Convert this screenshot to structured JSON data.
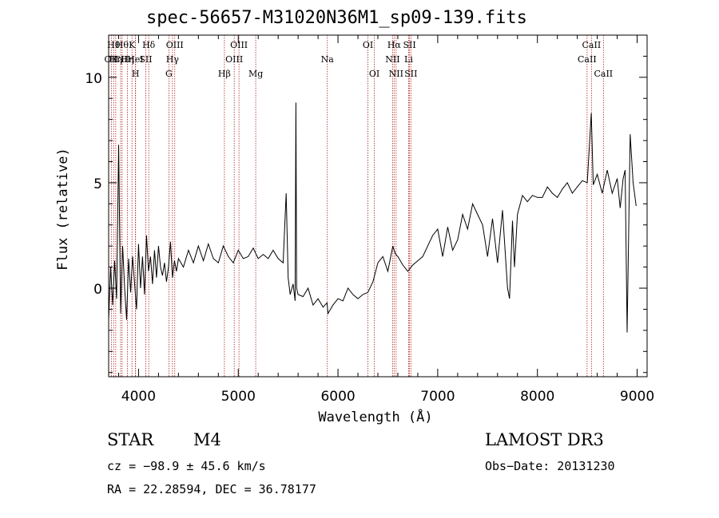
{
  "chart_data": {
    "type": "line",
    "title": "spec-56657-M31020N36M1_sp09-139.fits",
    "xlabel": "Wavelength (Å)",
    "ylabel": "Flux (relative)",
    "xlim": [
      3700,
      9100
    ],
    "ylim": [
      -4.2,
      12
    ],
    "x_ticks": [
      4000,
      5000,
      6000,
      7000,
      8000,
      9000
    ],
    "x_tick_labels": [
      "4000",
      "5000",
      "6000",
      "7000",
      "8000",
      "9000"
    ],
    "x_minor_step": 200,
    "y_ticks": [
      0,
      5,
      10
    ],
    "y_tick_labels": [
      "0",
      "5",
      "10"
    ],
    "y_minor_step": 1,
    "series": [
      {
        "name": "spectrum",
        "x": [
          3700,
          3720,
          3740,
          3760,
          3780,
          3800,
          3820,
          3840,
          3860,
          3880,
          3900,
          3920,
          3940,
          3960,
          3980,
          4000,
          4020,
          4040,
          4060,
          4080,
          4100,
          4120,
          4140,
          4160,
          4180,
          4200,
          4220,
          4240,
          4260,
          4280,
          4300,
          4320,
          4340,
          4360,
          4380,
          4400,
          4450,
          4500,
          4550,
          4600,
          4650,
          4700,
          4750,
          4800,
          4850,
          4900,
          4950,
          5000,
          5050,
          5100,
          5150,
          5200,
          5250,
          5300,
          5350,
          5400,
          5450,
          5480,
          5500,
          5520,
          5550,
          5570,
          5578,
          5585,
          5600,
          5650,
          5700,
          5750,
          5800,
          5850,
          5890,
          5900,
          5950,
          6000,
          6050,
          6100,
          6150,
          6200,
          6250,
          6300,
          6350,
          6400,
          6450,
          6500,
          6550,
          6563,
          6580,
          6600,
          6650,
          6700,
          6750,
          6800,
          6850,
          6900,
          6950,
          7000,
          7050,
          7100,
          7150,
          7200,
          7250,
          7300,
          7350,
          7400,
          7450,
          7500,
          7550,
          7600,
          7650,
          7700,
          7720,
          7750,
          7770,
          7800,
          7850,
          7900,
          7950,
          8000,
          8050,
          8100,
          8150,
          8200,
          8250,
          8300,
          8350,
          8400,
          8450,
          8500,
          8540,
          8560,
          8600,
          8650,
          8700,
          8750,
          8800,
          8830,
          8860,
          8880,
          8900,
          8930,
          8960,
          8990
        ],
        "values": [
          -1.5,
          1.0,
          -0.8,
          1.3,
          -0.5,
          6.8,
          -1.2,
          2.0,
          0.0,
          -1.5,
          1.4,
          -0.2,
          1.5,
          0.2,
          -1.0,
          2.1,
          0.0,
          1.5,
          -0.3,
          2.5,
          0.8,
          1.5,
          0.2,
          1.8,
          0.5,
          2.0,
          1.0,
          0.6,
          1.2,
          0.3,
          1.0,
          2.2,
          0.5,
          1.3,
          0.8,
          1.4,
          1.0,
          1.8,
          1.2,
          2.0,
          1.3,
          2.1,
          1.4,
          1.2,
          2.0,
          1.5,
          1.2,
          1.8,
          1.4,
          1.5,
          1.9,
          1.4,
          1.6,
          1.4,
          1.8,
          1.4,
          1.2,
          4.5,
          0.5,
          -0.3,
          0.2,
          -0.6,
          8.8,
          0.0,
          -0.3,
          -0.4,
          0.0,
          -0.8,
          -0.5,
          -0.9,
          -0.7,
          -1.2,
          -0.8,
          -0.5,
          -0.6,
          0.0,
          -0.3,
          -0.5,
          -0.3,
          -0.2,
          0.3,
          1.2,
          1.5,
          0.8,
          2.0,
          1.8,
          1.6,
          1.5,
          1.1,
          0.8,
          1.1,
          1.3,
          1.5,
          2.0,
          2.5,
          2.8,
          1.5,
          2.9,
          1.8,
          2.3,
          3.5,
          2.8,
          4.0,
          3.5,
          3.0,
          1.5,
          3.3,
          1.2,
          3.7,
          0.0,
          -0.5,
          3.2,
          1.0,
          3.5,
          4.4,
          4.1,
          4.4,
          4.3,
          4.3,
          4.8,
          4.5,
          4.3,
          4.7,
          5.0,
          4.5,
          4.8,
          5.1,
          5.0,
          8.3,
          4.9,
          5.4,
          4.5,
          5.6,
          4.5,
          5.2,
          3.8,
          5.2,
          5.6,
          -2.1,
          7.3,
          5.0,
          3.9
        ]
      }
    ],
    "spectral_lines": [
      {
        "x": 3727,
        "row": 1,
        "label": "OII"
      },
      {
        "x": 3750,
        "row": 0,
        "label": "Hθ"
      },
      {
        "x": 3771,
        "row": 1,
        "label": "Hη"
      },
      {
        "x": 3820,
        "row": 1,
        "label": "CII"
      },
      {
        "x": 3835,
        "row": 0,
        "label": "Hθ"
      },
      {
        "x": 3889,
        "row": 1,
        "label": "Hη"
      },
      {
        "x": 3934,
        "row": 0,
        "label": "K"
      },
      {
        "x": 3968,
        "row": 1,
        "label": "HeI"
      },
      {
        "x": 3970,
        "row": 2,
        "label": "H"
      },
      {
        "x": 4072,
        "row": 1,
        "label": "SII"
      },
      {
        "x": 4102,
        "row": 0,
        "label": "Hδ"
      },
      {
        "x": 4304,
        "row": 2,
        "label": "G"
      },
      {
        "x": 4340,
        "row": 1,
        "label": "Hγ"
      },
      {
        "x": 4363,
        "row": 0,
        "label": "OIII"
      },
      {
        "x": 4861,
        "row": 2,
        "label": "Hβ"
      },
      {
        "x": 4959,
        "row": 1,
        "label": "OIII"
      },
      {
        "x": 5007,
        "row": 0,
        "label": "OIII"
      },
      {
        "x": 5175,
        "row": 2,
        "label": "Mg"
      },
      {
        "x": 5893,
        "row": 1,
        "label": "Na"
      },
      {
        "x": 6300,
        "row": 0,
        "label": "OI"
      },
      {
        "x": 6364,
        "row": 2,
        "label": "OI"
      },
      {
        "x": 6548,
        "row": 1,
        "label": "NII"
      },
      {
        "x": 6563,
        "row": 0,
        "label": "Hα"
      },
      {
        "x": 6583,
        "row": 2,
        "label": "NII"
      },
      {
        "x": 6708,
        "row": 1,
        "label": "Li"
      },
      {
        "x": 6717,
        "row": 0,
        "label": "SII"
      },
      {
        "x": 6731,
        "row": 2,
        "label": "SII"
      },
      {
        "x": 8498,
        "row": 1,
        "label": "CaII"
      },
      {
        "x": 8542,
        "row": 0,
        "label": "CaII"
      },
      {
        "x": 8662,
        "row": 2,
        "label": "CaII"
      }
    ]
  },
  "info": {
    "object_class": "STAR",
    "subclass": "M4",
    "survey": "LAMOST DR3",
    "cz": "cz = −98.9 ± 45.6 km/s",
    "obs_date": "Obs−Date: 20131230",
    "coords": "RA =  22.28594, DEC =  36.78177"
  },
  "colors": {
    "line": "#000000",
    "marker_lines": "#b22222",
    "background": "#ffffff"
  }
}
